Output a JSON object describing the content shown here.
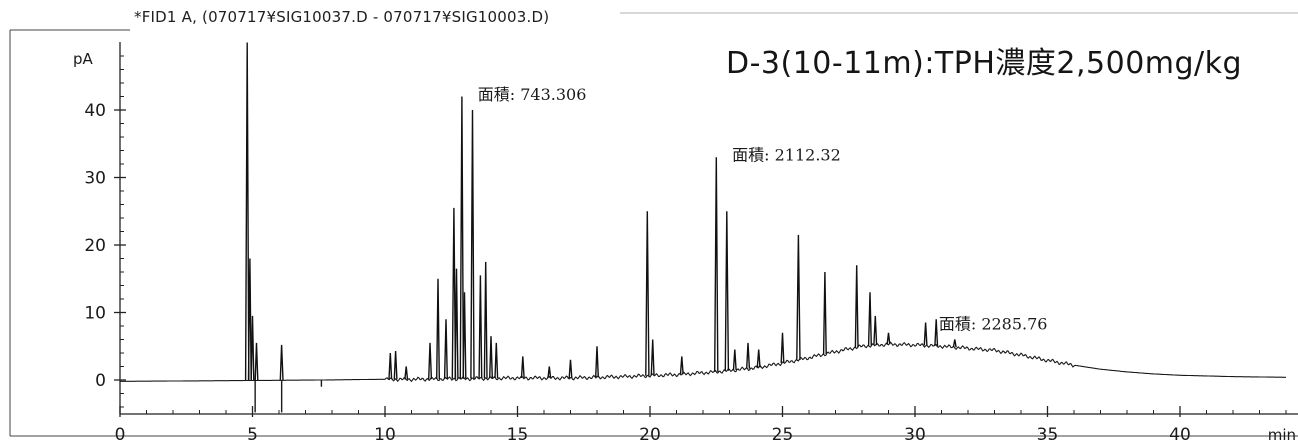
{
  "chart_data": {
    "type": "line",
    "title": "*FID1 A, (070717¥SIG10037.D - 070717¥SIG10003.D)",
    "subtitle": "D-3(10-11m):TPH濃度2,500mg/kg",
    "ylabel": "pA",
    "xlabel": "min",
    "xlim": [
      0,
      44
    ],
    "ylim": [
      -4.8,
      50
    ],
    "x_ticks": [
      "0",
      "5",
      "10",
      "15",
      "20",
      "25",
      "30",
      "35",
      "40"
    ],
    "y_ticks": [
      "0",
      "10",
      "20",
      "30",
      "40"
    ],
    "grid": false,
    "legend": "none",
    "baseline": [
      [
        0,
        -0.2
      ],
      [
        4,
        -0.1
      ],
      [
        7.6,
        0.0
      ],
      [
        9.8,
        0.1
      ],
      [
        11,
        0.1
      ],
      [
        13,
        0.2
      ],
      [
        15,
        0.3
      ],
      [
        17,
        0.3
      ],
      [
        19,
        0.5
      ],
      [
        21,
        0.8
      ],
      [
        22.5,
        1.2
      ],
      [
        24,
        1.8
      ],
      [
        25,
        2.5
      ],
      [
        26,
        3.3
      ],
      [
        27,
        4.2
      ],
      [
        28,
        5.0
      ],
      [
        29,
        5.3
      ],
      [
        30,
        5.2
      ],
      [
        31,
        5.0
      ],
      [
        32,
        4.7
      ],
      [
        33,
        4.4
      ],
      [
        34,
        3.7
      ],
      [
        35,
        2.9
      ],
      [
        36,
        2.2
      ],
      [
        37,
        1.6
      ],
      [
        38,
        1.2
      ],
      [
        39,
        0.9
      ],
      [
        40,
        0.7
      ],
      [
        42,
        0.5
      ],
      [
        44,
        0.4
      ]
    ],
    "peaks": [
      {
        "x": 4.8,
        "y": 50
      },
      {
        "x": 4.9,
        "y": 18
      },
      {
        "x": 5.0,
        "y": 9.5
      },
      {
        "x": 5.15,
        "y": 5.5
      },
      {
        "x": 6.1,
        "y": 5.2
      },
      {
        "x": 10.2,
        "y": 4
      },
      {
        "x": 10.4,
        "y": 4.3
      },
      {
        "x": 10.8,
        "y": 2
      },
      {
        "x": 11.7,
        "y": 5.5
      },
      {
        "x": 12.0,
        "y": 15
      },
      {
        "x": 12.3,
        "y": 9
      },
      {
        "x": 12.6,
        "y": 25.5
      },
      {
        "x": 12.7,
        "y": 16.5
      },
      {
        "x": 12.9,
        "y": 42
      },
      {
        "x": 13.0,
        "y": 13
      },
      {
        "x": 13.3,
        "y": 40
      },
      {
        "x": 13.6,
        "y": 15.5
      },
      {
        "x": 13.8,
        "y": 17.5
      },
      {
        "x": 14.0,
        "y": 6.5
      },
      {
        "x": 14.2,
        "y": 5.5
      },
      {
        "x": 15.2,
        "y": 3.5
      },
      {
        "x": 16.2,
        "y": 2
      },
      {
        "x": 17.0,
        "y": 3
      },
      {
        "x": 18.0,
        "y": 5
      },
      {
        "x": 19.9,
        "y": 25
      },
      {
        "x": 20.1,
        "y": 6
      },
      {
        "x": 21.2,
        "y": 3.5
      },
      {
        "x": 22.5,
        "y": 33
      },
      {
        "x": 22.9,
        "y": 25
      },
      {
        "x": 23.2,
        "y": 4.5
      },
      {
        "x": 23.7,
        "y": 5.5
      },
      {
        "x": 24.1,
        "y": 4.5
      },
      {
        "x": 25.0,
        "y": 7
      },
      {
        "x": 25.6,
        "y": 21.5
      },
      {
        "x": 26.6,
        "y": 16
      },
      {
        "x": 27.8,
        "y": 17
      },
      {
        "x": 28.3,
        "y": 13
      },
      {
        "x": 28.5,
        "y": 9.5
      },
      {
        "x": 29.0,
        "y": 7
      },
      {
        "x": 30.4,
        "y": 8.5
      },
      {
        "x": 30.8,
        "y": 9
      },
      {
        "x": 31.5,
        "y": 6
      }
    ],
    "annotations": [
      {
        "text": "面積: 743.306",
        "x": 13.5,
        "y": 41.5
      },
      {
        "text": "面積: 2112.32",
        "x": 23.1,
        "y": 32.5
      },
      {
        "text": "面積: 2285.76",
        "x": 30.9,
        "y": 7.5
      }
    ]
  }
}
